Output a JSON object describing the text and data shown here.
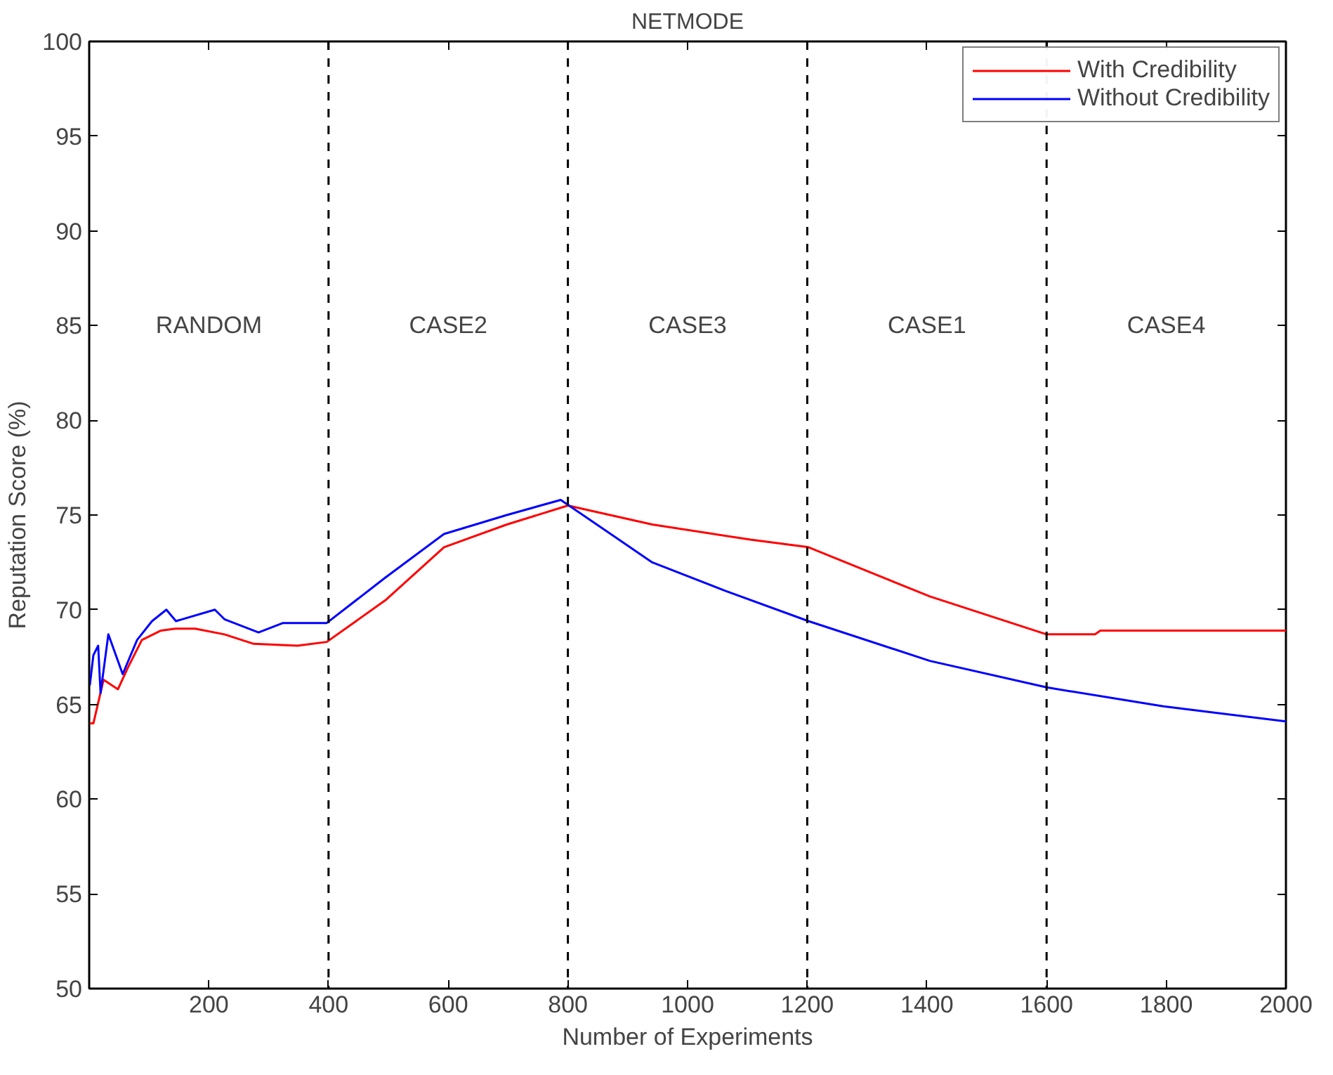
{
  "chart_data": {
    "type": "line",
    "title": "NETMODE",
    "xlabel": "Number of Experiments",
    "ylabel": "Reputation Score (%)",
    "xlim": [
      0,
      2000
    ],
    "xticks": [
      200,
      400,
      600,
      800,
      1000,
      1200,
      1400,
      1600,
      1800,
      2000
    ],
    "ylim": [
      50,
      100
    ],
    "yticks": [
      50,
      55,
      60,
      65,
      70,
      75,
      80,
      85,
      90,
      95,
      100
    ],
    "grid": false,
    "legend": "top right",
    "line_style": "solid",
    "series": [
      {
        "name": "With Credibility",
        "color": "#ff0000",
        "x": [
          1,
          7,
          24,
          48,
          64,
          88,
          120,
          144,
          177,
          226,
          275,
          348,
          397,
          495,
          593,
          698,
          800,
          941,
          1105,
          1202,
          1405,
          1600,
          1681,
          1690,
          2000
        ],
        "values": [
          64.0,
          64.0,
          66.3,
          65.8,
          66.9,
          68.4,
          68.9,
          69.0,
          69.0,
          68.7,
          68.2,
          68.1,
          68.3,
          70.5,
          73.3,
          74.5,
          75.5,
          74.5,
          73.7,
          73.3,
          70.7,
          68.7,
          68.7,
          68.9,
          68.9
        ]
      },
      {
        "name": "Without Credibility",
        "color": "#0000ff",
        "x": [
          1,
          7,
          15,
          19,
          32,
          56,
          80,
          105,
          129,
          145,
          210,
          226,
          283,
          324,
          397,
          495,
          593,
          698,
          788,
          941,
          1063,
          1202,
          1405,
          1600,
          1795,
          2000
        ],
        "values": [
          66.0,
          67.6,
          68.1,
          65.6,
          68.7,
          66.6,
          68.4,
          69.4,
          70.0,
          69.4,
          70.0,
          69.5,
          68.8,
          69.3,
          69.3,
          71.7,
          74.0,
          75.0,
          75.8,
          72.5,
          71.0,
          69.4,
          67.3,
          65.9,
          64.9,
          64.1
        ]
      }
    ],
    "ref_lines": [
      {
        "axis": "x",
        "value": 400,
        "color": "#000000",
        "line_style": "dashed"
      },
      {
        "axis": "x",
        "value": 800,
        "color": "#000000",
        "line_style": "dashed"
      },
      {
        "axis": "x",
        "value": 1200,
        "color": "#000000",
        "line_style": "dashed"
      },
      {
        "axis": "x",
        "value": 1600,
        "color": "#000000",
        "line_style": "dashed"
      }
    ],
    "annotations": [
      "RANDOM",
      "CASE2",
      "CASE3",
      "CASE1",
      "CASE4"
    ]
  }
}
